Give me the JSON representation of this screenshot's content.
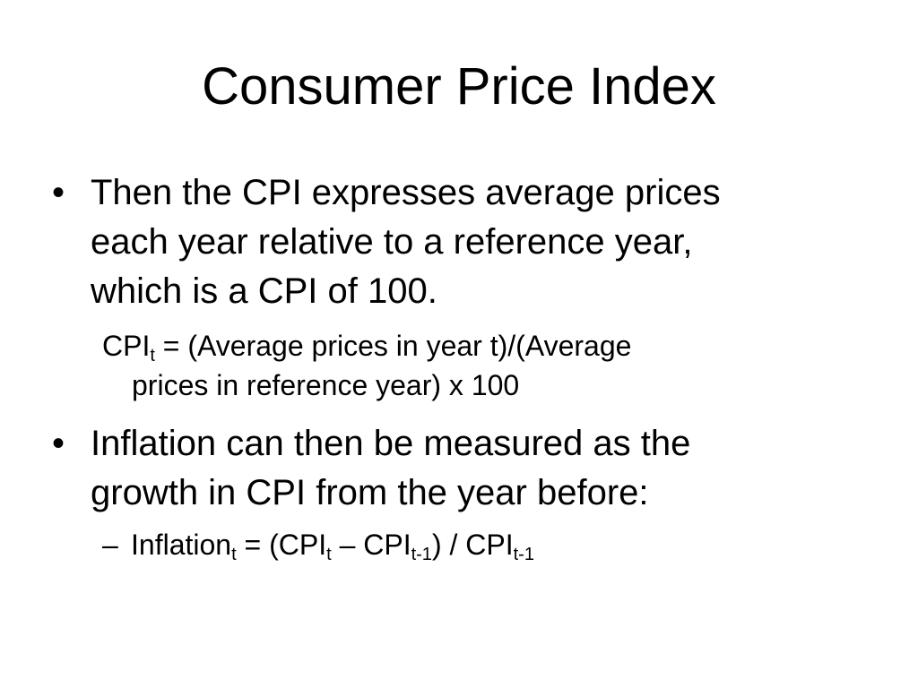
{
  "slide": {
    "title": "Consumer Price Index",
    "bullets": [
      {
        "marker": "•",
        "lines": [
          "Then the CPI expresses average prices",
          "each year relative to a reference year,",
          "which is a CPI of 100."
        ]
      },
      {
        "marker": "•",
        "lines": [
          "Inflation can then be measured as the",
          "growth in CPI from the year before:"
        ]
      }
    ],
    "cpi_formula": {
      "base": "CPI",
      "subscript": "t",
      "line1_rest": " = (Average prices in year t)/(Average",
      "line2": "prices in reference year) x 100"
    },
    "inflation_formula": {
      "dash": "–",
      "part1": "Inflation",
      "sub1": "t",
      "part2": " = (CPI",
      "sub2": "t",
      "part3": " – CPI",
      "sub3": "t-1",
      "part4": ") / CPI",
      "sub4": "t-1"
    }
  }
}
